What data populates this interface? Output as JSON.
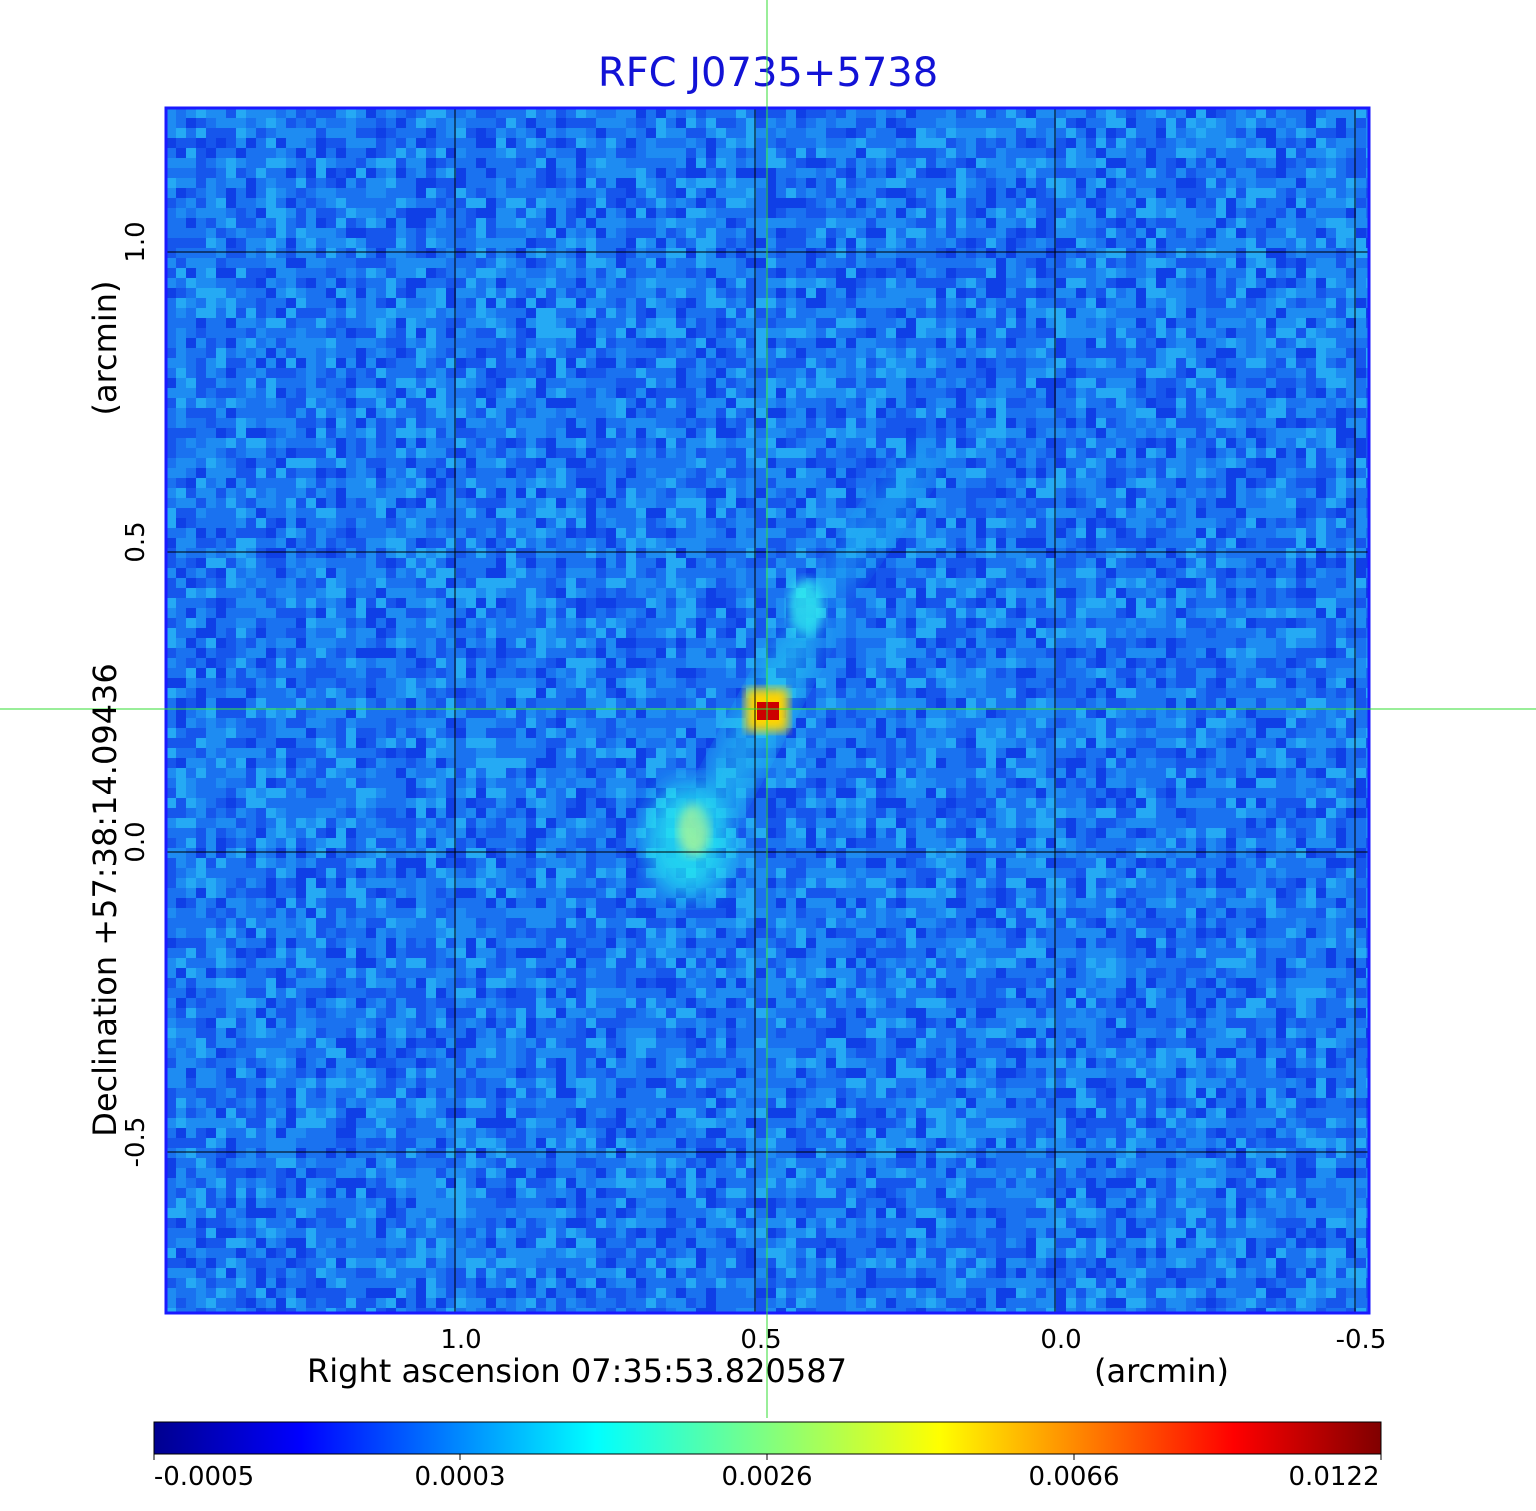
{
  "title": "RFC J0735+5738",
  "xaxis": {
    "label": "Right ascension  07:35:53.820587",
    "unit": "(arcmin)",
    "ticks": [
      {
        "value": 1.0,
        "label": "1.0"
      },
      {
        "value": 0.5,
        "label": "0.5"
      },
      {
        "value": 0.0,
        "label": "0.0"
      },
      {
        "value": -0.5,
        "label": "-0.5"
      }
    ]
  },
  "yaxis": {
    "label": "Declination  +57:38:14.09436",
    "unit": "(arcmin)",
    "ticks": [
      {
        "value": 1.0,
        "label": "1.0"
      },
      {
        "value": 0.5,
        "label": "0.5"
      },
      {
        "value": 0.0,
        "label": "0.0"
      },
      {
        "value": -0.5,
        "label": "-0.5"
      }
    ]
  },
  "colorbar": {
    "ticks": [
      "-0.0005",
      "0.0003",
      "0.0026",
      "0.0066",
      "0.0122"
    ],
    "colormap": "jet"
  },
  "colors": {
    "title": "#1212d6",
    "frame": "#1a1aff",
    "crosshair": "#33dd33",
    "grid": "#000000"
  },
  "image": {
    "source": "noise field with jet emission; peak at crosshair centre",
    "peak_value": 0.0122
  }
}
